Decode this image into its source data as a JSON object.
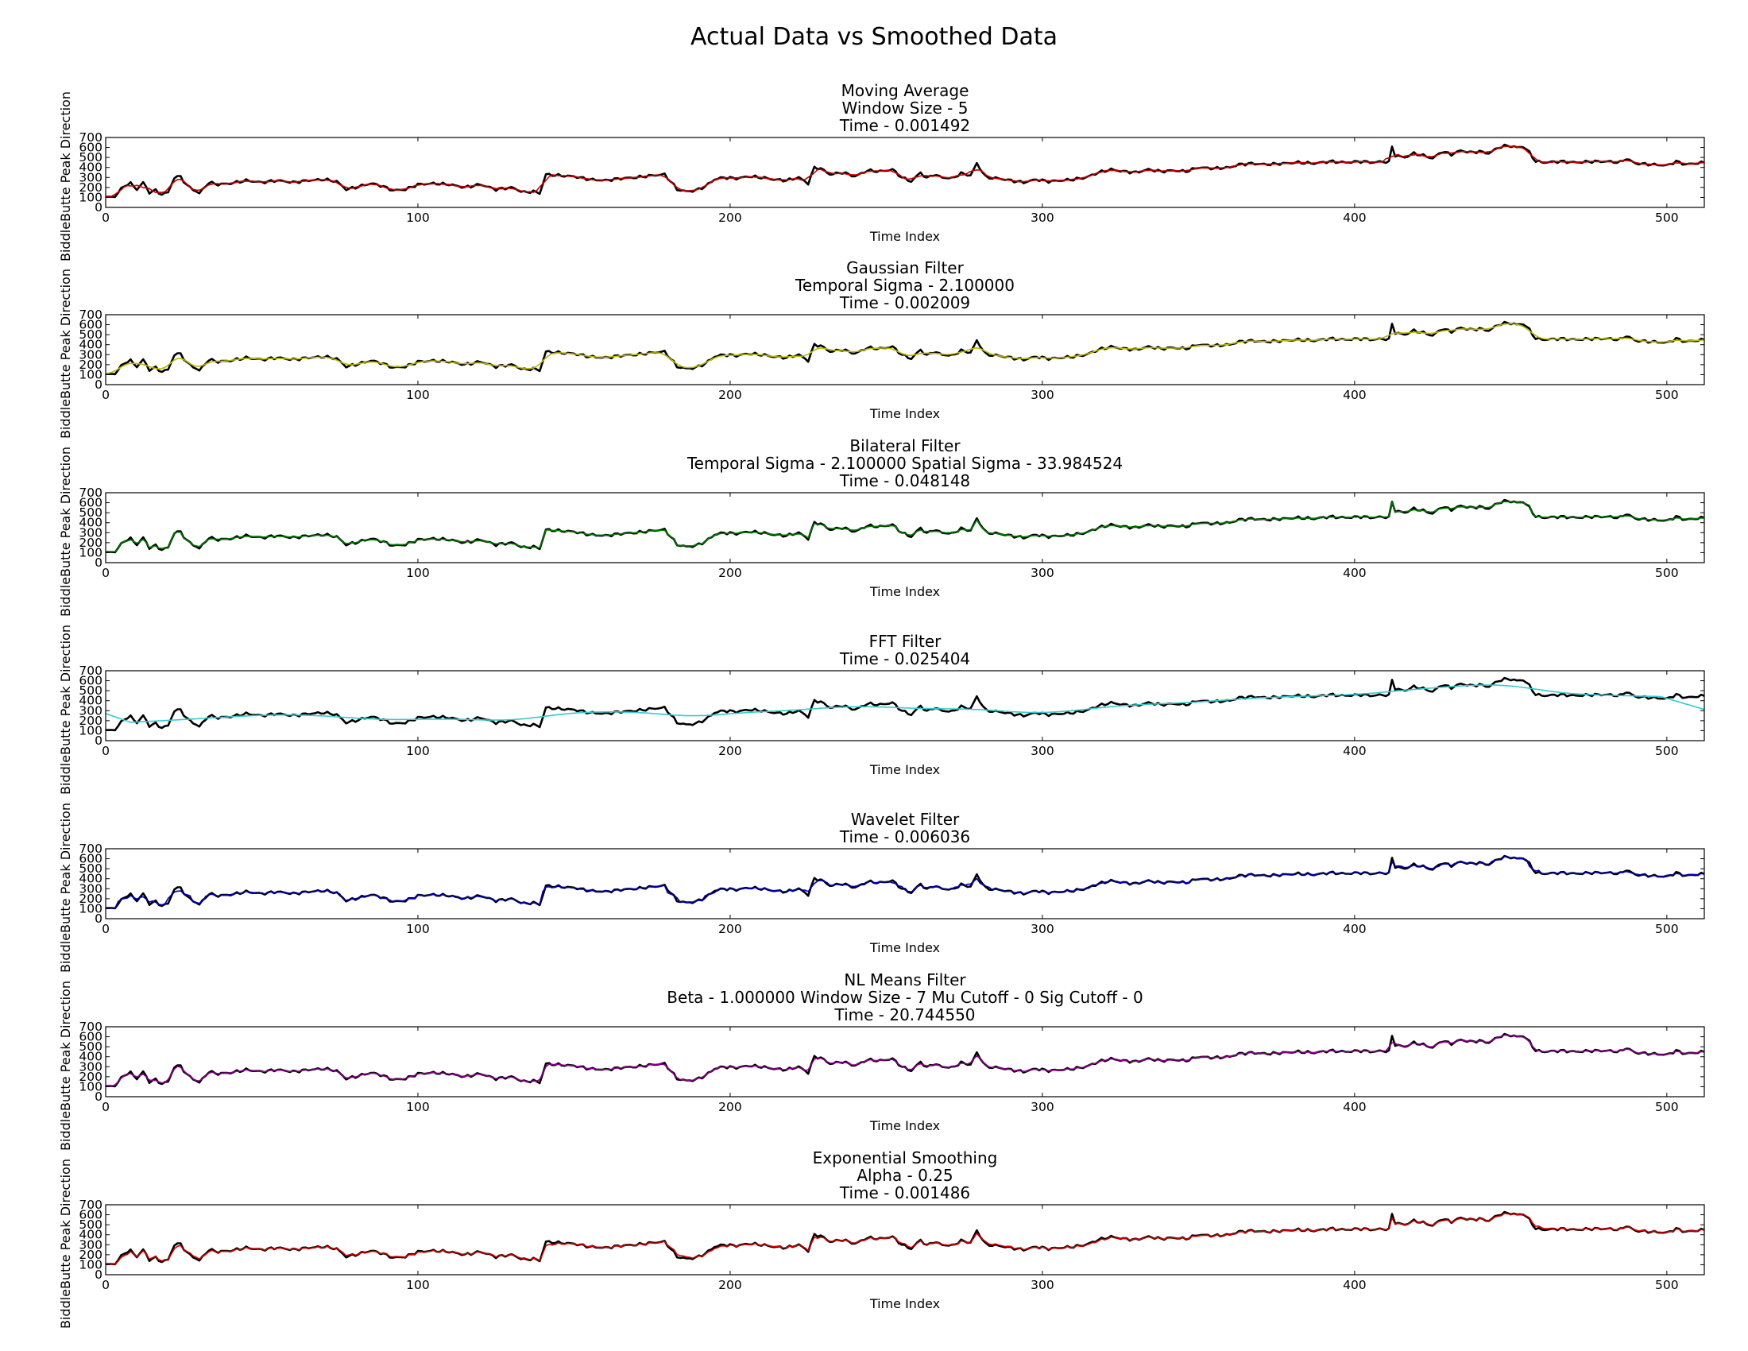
{
  "figure": {
    "title": "Actual Data vs Smoothed Data",
    "actual_color": "#000000"
  },
  "chart_data": [
    {
      "type": "line",
      "title": [
        "Moving Average",
        "Window Size - 5",
        "Time - 0.001492"
      ],
      "xlabel": "Time Index",
      "ylabel": "BiddleButte Peak Direction",
      "xlim": [
        0,
        512
      ],
      "ylim": [
        0,
        700
      ],
      "xticks": [
        0,
        100,
        200,
        300,
        400,
        500
      ],
      "yticks": [
        0,
        100,
        200,
        300,
        400,
        500,
        600,
        700
      ],
      "smooth_color": "#cc0000",
      "smooth_mode": "ma"
    },
    {
      "type": "line",
      "title": [
        "Gaussian Filter",
        "Temporal Sigma - 2.100000",
        "Time - 0.002009"
      ],
      "xlabel": "Time Index",
      "ylabel": "BiddleButte Peak Direction",
      "xlim": [
        0,
        512
      ],
      "ylim": [
        0,
        700
      ],
      "xticks": [
        0,
        100,
        200,
        300,
        400,
        500
      ],
      "yticks": [
        0,
        100,
        200,
        300,
        400,
        500,
        600,
        700
      ],
      "smooth_color": "#b8b800",
      "smooth_mode": "gauss"
    },
    {
      "type": "line",
      "title": [
        "Bilateral Filter",
        "Temporal Sigma - 2.100000  Spatial Sigma - 33.984524",
        "Time - 0.048148"
      ],
      "xlabel": "Time Index",
      "ylabel": "BiddleButte Peak Direction",
      "xlim": [
        0,
        512
      ],
      "ylim": [
        0,
        700
      ],
      "xticks": [
        0,
        100,
        200,
        300,
        400,
        500
      ],
      "yticks": [
        0,
        100,
        200,
        300,
        400,
        500,
        600,
        700
      ],
      "smooth_color": "#007a00",
      "smooth_mode": "bilateral"
    },
    {
      "type": "line",
      "title": [
        "FFT Filter",
        "Time - 0.025404"
      ],
      "xlabel": "Time Index",
      "ylabel": "BiddleButte Peak Direction",
      "xlim": [
        0,
        512
      ],
      "ylim": [
        0,
        700
      ],
      "xticks": [
        0,
        100,
        200,
        300,
        400,
        500
      ],
      "yticks": [
        0,
        100,
        200,
        300,
        400,
        500,
        600,
        700
      ],
      "smooth_color": "#33cccc",
      "smooth_mode": "fft"
    },
    {
      "type": "line",
      "title": [
        "Wavelet Filter",
        "Time - 0.006036"
      ],
      "xlabel": "Time Index",
      "ylabel": "BiddleButte Peak Direction",
      "xlim": [
        0,
        512
      ],
      "ylim": [
        0,
        700
      ],
      "xticks": [
        0,
        100,
        200,
        300,
        400,
        500
      ],
      "yticks": [
        0,
        100,
        200,
        300,
        400,
        500,
        600,
        700
      ],
      "smooth_color": "#0000b0",
      "smooth_mode": "wavelet"
    },
    {
      "type": "line",
      "title": [
        "NL Means Filter",
        "Beta - 1.000000  Window Size - 7  Mu Cutoff - 0  Sig Cutoff - 0",
        "Time - 20.744550"
      ],
      "xlabel": "Time Index",
      "ylabel": "BiddleButte Peak Direction",
      "xlim": [
        0,
        512
      ],
      "ylim": [
        0,
        700
      ],
      "xticks": [
        0,
        100,
        200,
        300,
        400,
        500
      ],
      "yticks": [
        0,
        100,
        200,
        300,
        400,
        500,
        600,
        700
      ],
      "smooth_color": "#8a008a",
      "smooth_mode": "nl"
    },
    {
      "type": "line",
      "title": [
        "Exponential Smoothing",
        "Alpha - 0.25",
        "Time - 0.001486"
      ],
      "xlabel": "Time Index",
      "ylabel": "BiddleButte Peak Direction",
      "xlim": [
        0,
        512
      ],
      "ylim": [
        0,
        700
      ],
      "xticks": [
        0,
        100,
        200,
        300,
        400,
        500
      ],
      "yticks": [
        0,
        100,
        200,
        300,
        400,
        500,
        600,
        700
      ],
      "smooth_color": "#cc0000",
      "smooth_mode": "exp"
    }
  ],
  "actual_series": {
    "name": "",
    "anchor_x": [
      0,
      3,
      6,
      8,
      10,
      12,
      14,
      16,
      18,
      20,
      22,
      24,
      26,
      28,
      30,
      33,
      36,
      40,
      45,
      50,
      55,
      60,
      65,
      70,
      74,
      77,
      80,
      85,
      88,
      92,
      96,
      100,
      105,
      110,
      115,
      120,
      125,
      130,
      134,
      137,
      139,
      141,
      145,
      150,
      155,
      160,
      165,
      170,
      175,
      179,
      181,
      183,
      186,
      189,
      192,
      195,
      198,
      202,
      206,
      210,
      214,
      218,
      222,
      225,
      227,
      229,
      232,
      236,
      240,
      244,
      248,
      252,
      255,
      258,
      261,
      263,
      265,
      268,
      271,
      274,
      277,
      279,
      282,
      286,
      290,
      294,
      298,
      302,
      306,
      310,
      314,
      318,
      322,
      326,
      330,
      334,
      338,
      342,
      346,
      350,
      355,
      360,
      363,
      367,
      372,
      377,
      382,
      387,
      392,
      397,
      402,
      406,
      409,
      411,
      412,
      413,
      416,
      419,
      422,
      425,
      428,
      431,
      434,
      437,
      440,
      443,
      446,
      449,
      452,
      454,
      456,
      458,
      461,
      466,
      471,
      476,
      481,
      485,
      487,
      490,
      495,
      500,
      503,
      506,
      509,
      512
    ],
    "anchor_y": [
      100,
      110,
      220,
      240,
      180,
      250,
      150,
      170,
      130,
      150,
      300,
      310,
      220,
      180,
      140,
      250,
      230,
      240,
      270,
      250,
      270,
      250,
      270,
      280,
      260,
      180,
      200,
      240,
      220,
      170,
      180,
      230,
      240,
      230,
      200,
      230,
      180,
      200,
      150,
      160,
      140,
      330,
      320,
      310,
      280,
      270,
      290,
      300,
      320,
      330,
      260,
      180,
      160,
      170,
      210,
      280,
      300,
      290,
      310,
      300,
      280,
      270,
      300,
      240,
      400,
      390,
      330,
      350,
      310,
      370,
      360,
      380,
      300,
      260,
      350,
      290,
      330,
      300,
      290,
      340,
      320,
      440,
      300,
      290,
      270,
      250,
      280,
      260,
      270,
      280,
      300,
      350,
      380,
      360,
      350,
      380,
      360,
      370,
      360,
      400,
      390,
      400,
      430,
      440,
      430,
      440,
      450,
      440,
      460,
      450,
      460,
      450,
      460,
      450,
      610,
      520,
      500,
      540,
      520,
      490,
      560,
      530,
      570,
      550,
      560,
      540,
      600,
      620,
      600,
      610,
      550,
      460,
      450,
      460,
      450,
      460,
      460,
      450,
      490,
      440,
      430,
      420,
      460,
      430,
      440,
      450
    ]
  }
}
